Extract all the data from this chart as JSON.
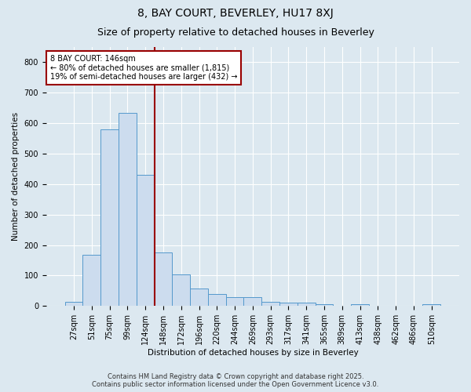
{
  "title1": "8, BAY COURT, BEVERLEY, HU17 8XJ",
  "title2": "Size of property relative to detached houses in Beverley",
  "xlabel": "Distribution of detached houses by size in Beverley",
  "ylabel": "Number of detached properties",
  "categories": [
    "27sqm",
    "51sqm",
    "75sqm",
    "99sqm",
    "124sqm",
    "148sqm",
    "172sqm",
    "196sqm",
    "220sqm",
    "244sqm",
    "269sqm",
    "293sqm",
    "317sqm",
    "341sqm",
    "365sqm",
    "389sqm",
    "413sqm",
    "438sqm",
    "462sqm",
    "486sqm",
    "510sqm"
  ],
  "values": [
    15,
    168,
    580,
    635,
    430,
    175,
    105,
    57,
    40,
    30,
    30,
    15,
    10,
    10,
    7,
    0,
    7,
    0,
    0,
    0,
    5
  ],
  "bar_color": "#ccdcee",
  "bar_edge_color": "#5599cc",
  "vline_index": 5,
  "vline_color": "#990000",
  "annotation_text": "8 BAY COURT: 146sqm\n← 80% of detached houses are smaller (1,815)\n19% of semi-detached houses are larger (432) →",
  "annotation_box_color": "white",
  "annotation_box_edge": "#990000",
  "footer1": "Contains HM Land Registry data © Crown copyright and database right 2025.",
  "footer2": "Contains public sector information licensed under the Open Government Licence v3.0.",
  "ylim": [
    0,
    850
  ],
  "yticks": [
    0,
    100,
    200,
    300,
    400,
    500,
    600,
    700,
    800
  ],
  "background_color": "#dce8f0",
  "grid_color": "white",
  "title1_fontsize": 10,
  "title2_fontsize": 9,
  "axis_fontsize": 7.5,
  "tick_fontsize": 7,
  "annot_fontsize": 7,
  "footer_fontsize": 6
}
